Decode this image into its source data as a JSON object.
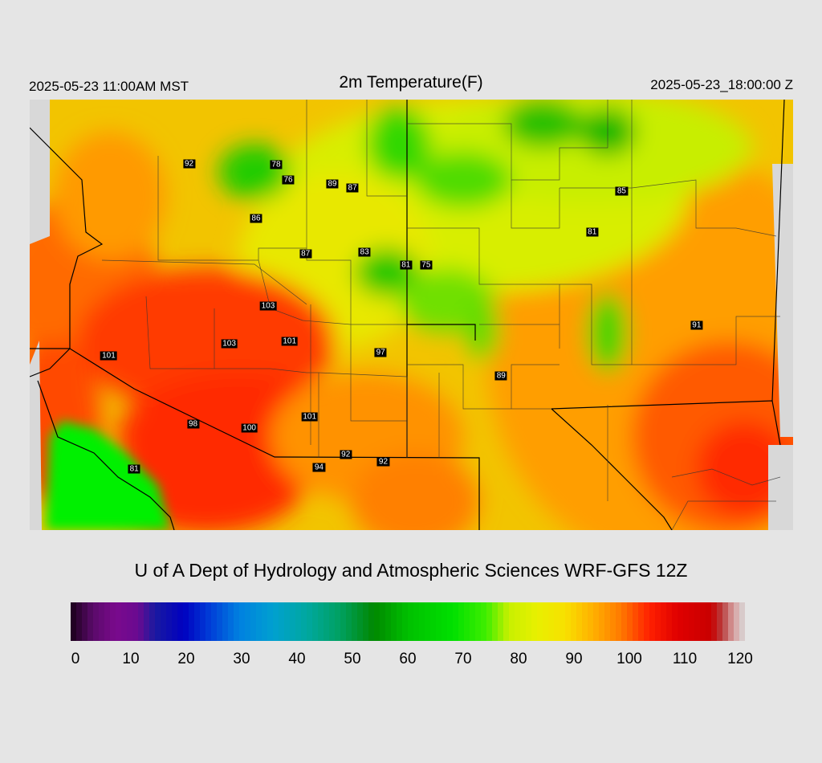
{
  "header": {
    "local_time": "2025-05-23 11:00AM MST",
    "title": "2m Temperature(F)",
    "valid_time": "2025-05-23_18:00:00 Z"
  },
  "stations": [
    {
      "label": "92",
      "lon": -118.55,
      "lat": 44.6
    },
    {
      "label": "78",
      "lon": -115.3,
      "lat": 44.55
    },
    {
      "label": "76",
      "lon": -114.85,
      "lat": 44.05
    },
    {
      "label": "89",
      "lon": -113.2,
      "lat": 43.9
    },
    {
      "label": "87",
      "lon": -112.45,
      "lat": 43.75
    },
    {
      "label": "86",
      "lon": -116.05,
      "lat": 42.7
    },
    {
      "label": "87",
      "lon": -114.2,
      "lat": 41.5
    },
    {
      "label": "83",
      "lon": -112.0,
      "lat": 41.55
    },
    {
      "label": "81",
      "lon": -110.45,
      "lat": 41.1
    },
    {
      "label": "75",
      "lon": -109.7,
      "lat": 41.1
    },
    {
      "label": "85",
      "lon": -102.4,
      "lat": 43.65
    },
    {
      "label": "81",
      "lon": -103.5,
      "lat": 42.25
    },
    {
      "label": "103",
      "lon": -115.6,
      "lat": 39.7
    },
    {
      "label": "103",
      "lon": -117.05,
      "lat": 38.4
    },
    {
      "label": "101",
      "lon": -114.8,
      "lat": 38.5
    },
    {
      "label": "97",
      "lon": -111.4,
      "lat": 38.1
    },
    {
      "label": "101",
      "lon": -121.55,
      "lat": 38.0
    },
    {
      "label": "91",
      "lon": -99.6,
      "lat": 39.05
    },
    {
      "label": "89",
      "lon": -106.9,
      "lat": 37.3
    },
    {
      "label": "98",
      "lon": -118.4,
      "lat": 35.65
    },
    {
      "label": "100",
      "lon": -116.3,
      "lat": 35.5
    },
    {
      "label": "101",
      "lon": -114.05,
      "lat": 35.9
    },
    {
      "label": "92",
      "lon": -112.7,
      "lat": 34.6
    },
    {
      "label": "94",
      "lon": -113.7,
      "lat": 34.15
    },
    {
      "label": "92",
      "lon": -111.3,
      "lat": 34.35
    },
    {
      "label": "81",
      "lon": -120.6,
      "lat": 34.1
    }
  ],
  "colorbar": {
    "ticks": [
      "0",
      "10",
      "20",
      "30",
      "40",
      "50",
      "60",
      "70",
      "80",
      "90",
      "100",
      "110",
      "120"
    ],
    "min": 0,
    "max": 120,
    "stops": [
      {
        "v": 0,
        "c": "#1a001a"
      },
      {
        "v": 4,
        "c": "#5a0a6a"
      },
      {
        "v": 8,
        "c": "#7a0a8c"
      },
      {
        "v": 12,
        "c": "#6a0a90"
      },
      {
        "v": 15,
        "c": "#1a1aa0"
      },
      {
        "v": 20,
        "c": "#0000c0"
      },
      {
        "v": 25,
        "c": "#0040d8"
      },
      {
        "v": 30,
        "c": "#0080e0"
      },
      {
        "v": 36,
        "c": "#00a0d0"
      },
      {
        "v": 42,
        "c": "#00a8a0"
      },
      {
        "v": 48,
        "c": "#00a060"
      },
      {
        "v": 54,
        "c": "#008800"
      },
      {
        "v": 60,
        "c": "#00c000"
      },
      {
        "v": 68,
        "c": "#00e000"
      },
      {
        "v": 74,
        "c": "#40ee00"
      },
      {
        "v": 78,
        "c": "#c8f000"
      },
      {
        "v": 83,
        "c": "#e8f000"
      },
      {
        "v": 88,
        "c": "#f8e000"
      },
      {
        "v": 93,
        "c": "#ffb000"
      },
      {
        "v": 98,
        "c": "#ff7800"
      },
      {
        "v": 103,
        "c": "#ff2000"
      },
      {
        "v": 108,
        "c": "#e00000"
      },
      {
        "v": 114,
        "c": "#c80000"
      },
      {
        "v": 116,
        "c": "#b84040"
      },
      {
        "v": 118,
        "c": "#d8a0a0"
      },
      {
        "v": 120,
        "c": "#d8d8d8"
      }
    ]
  },
  "credit": "U of A Dept of Hydrology and Atmospheric Sciences WRF-GFS 12Z"
}
